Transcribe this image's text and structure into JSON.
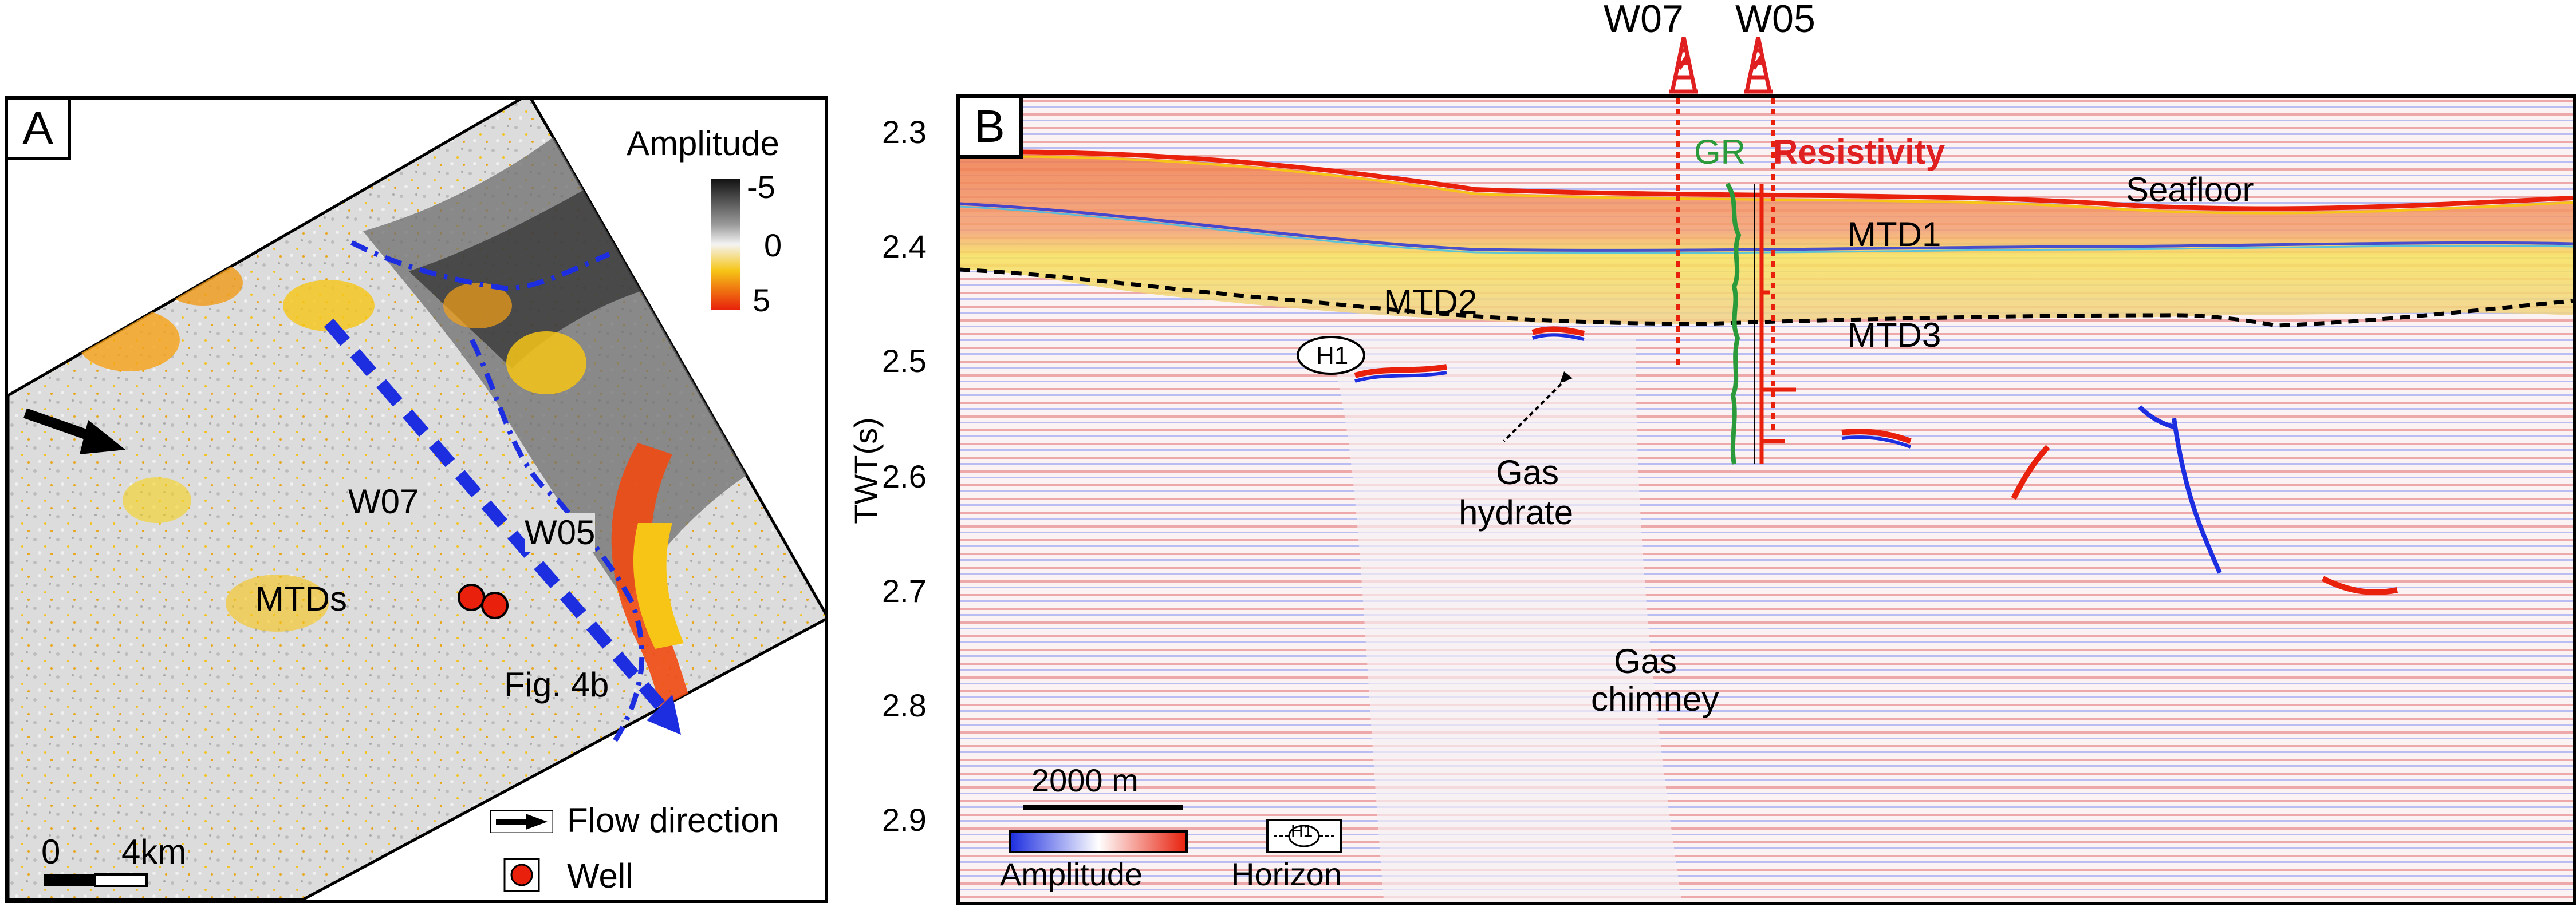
{
  "panel_a": {
    "letter": "A",
    "colorbar": {
      "title": "Amplitude",
      "ticks": [
        "-5",
        "0",
        "5"
      ]
    },
    "wells": [
      "W07",
      "W05"
    ],
    "labels": {
      "mtds": "MTDs",
      "fig": "Fig. 4b"
    },
    "legend": {
      "flow": "Flow direction",
      "well": "Well"
    },
    "scale": {
      "start": "0",
      "end": "4km"
    }
  },
  "panel_b": {
    "letter": "B",
    "wells": [
      "W07",
      "W05"
    ],
    "logs": {
      "gr": "GR",
      "resistivity": "Resistivity"
    },
    "units": [
      "Seafloor",
      "MTD1",
      "MTD2",
      "MTD3"
    ],
    "horizon": "H1",
    "features": {
      "hydrate_1": "Gas",
      "hydrate_2": "hydrate",
      "chimney_1": "Gas",
      "chimney_2": "chimney"
    },
    "y_axis": {
      "label": "TWT(s)",
      "ticks": [
        "2.3",
        "2.4",
        "2.5",
        "2.6",
        "2.7",
        "2.8",
        "2.9"
      ]
    },
    "scale_bar": "2000 m",
    "legend": {
      "amplitude": "Amplitude",
      "horizon": "Horizon"
    }
  },
  "colors": {
    "red": "#e02020",
    "green": "#2a9a3a",
    "blue": "#1d2ee0",
    "black": "#000000"
  },
  "icons": [
    "flow-arrow-icon",
    "well-dot-icon",
    "derrick-icon"
  ]
}
